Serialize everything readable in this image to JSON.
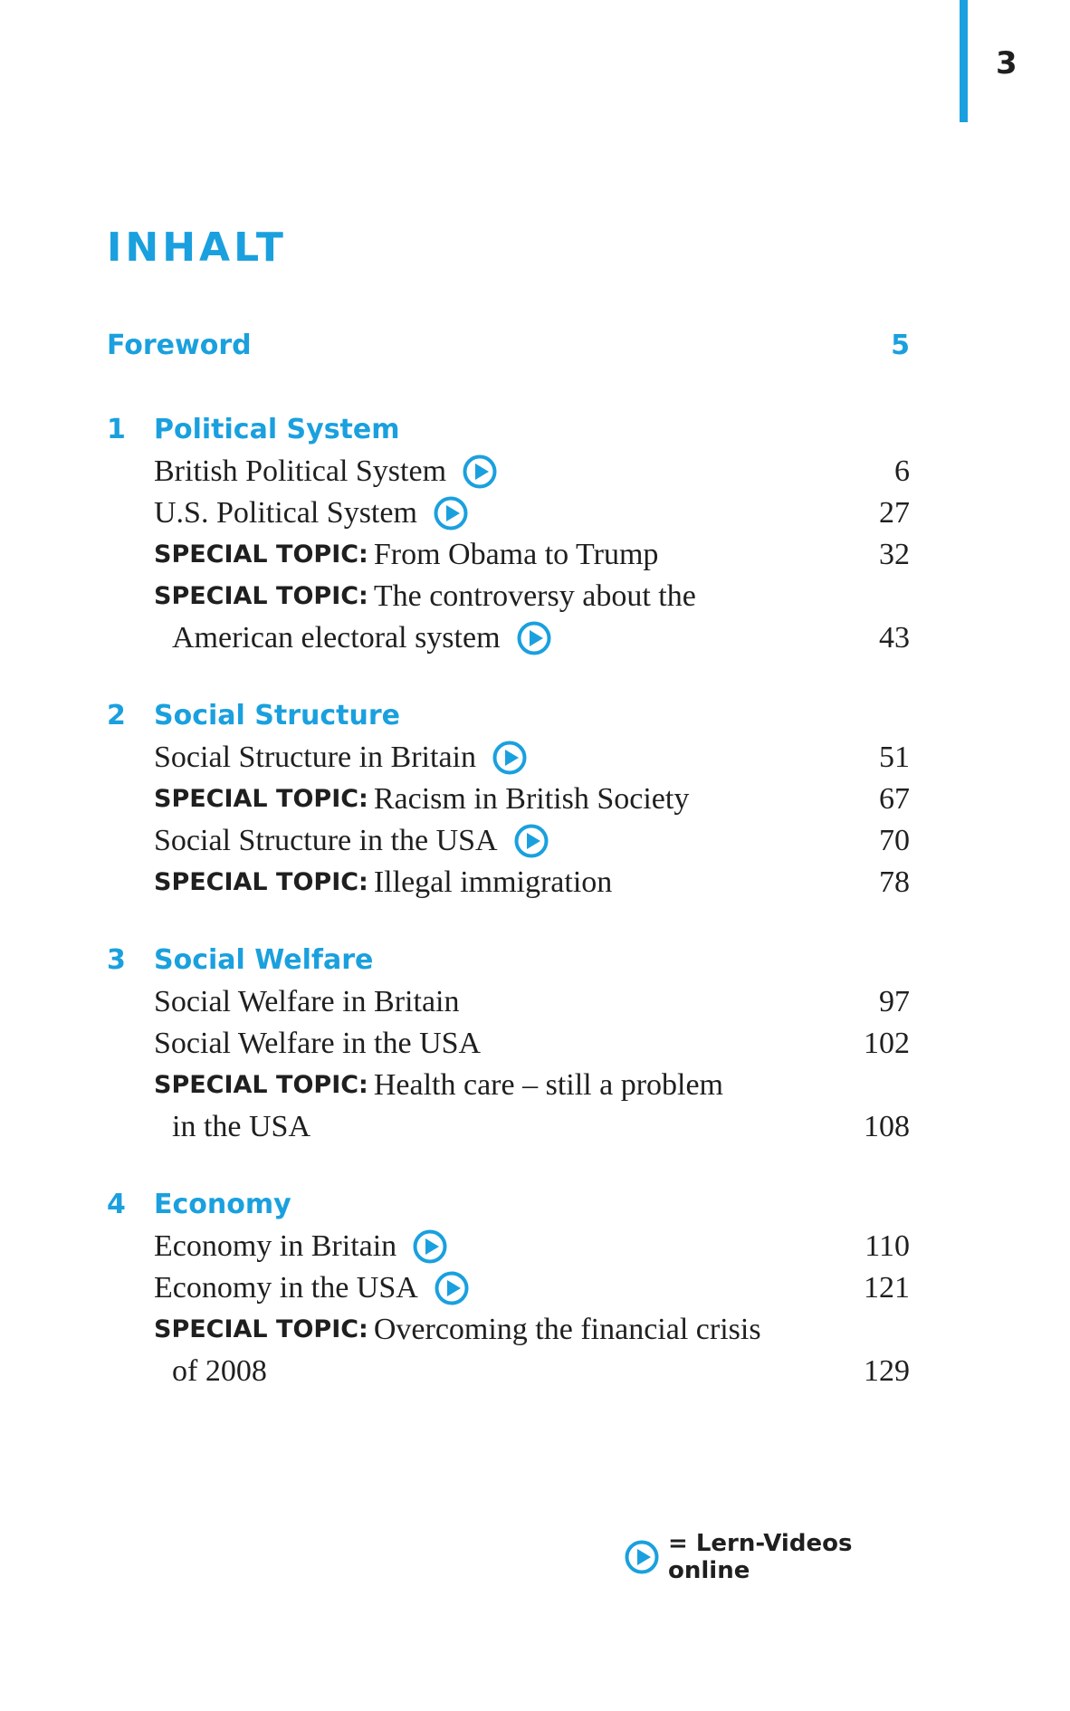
{
  "page_number": "3",
  "title": "INHALT",
  "foreword": {
    "label": "Foreword",
    "page": "5"
  },
  "chapters": [
    {
      "num": "1",
      "title": "Political System",
      "entries": [
        {
          "label": "",
          "text": "British Political System",
          "cont": "",
          "page": "6",
          "video": true
        },
        {
          "label": "",
          "text": "U.S. Political System",
          "cont": "",
          "page": "27",
          "video": true
        },
        {
          "label": "SPECIAL TOPIC:",
          "text": "From Obama to Trump",
          "cont": "",
          "page": "32",
          "video": false
        },
        {
          "label": "SPECIAL TOPIC:",
          "text": "The controversy about the",
          "cont": "American electoral system",
          "page": "43",
          "video": true
        }
      ]
    },
    {
      "num": "2",
      "title": "Social Structure",
      "entries": [
        {
          "label": "",
          "text": "Social Structure in Britain",
          "cont": "",
          "page": "51",
          "video": true
        },
        {
          "label": "SPECIAL TOPIC:",
          "text": "Racism in British Society",
          "cont": "",
          "page": "67",
          "video": false
        },
        {
          "label": "",
          "text": "Social Structure in the USA",
          "cont": "",
          "page": "70",
          "video": true
        },
        {
          "label": "SPECIAL TOPIC:",
          "text": "Illegal immigration",
          "cont": "",
          "page": "78",
          "video": false
        }
      ]
    },
    {
      "num": "3",
      "title": "Social Welfare",
      "entries": [
        {
          "label": "",
          "text": "Social Welfare in Britain",
          "cont": "",
          "page": "97",
          "video": false
        },
        {
          "label": "",
          "text": "Social Welfare in the USA",
          "cont": "",
          "page": "102",
          "video": false
        },
        {
          "label": "SPECIAL TOPIC:",
          "text": "Health care – still a problem",
          "cont": "in the USA",
          "page": "108",
          "video": false
        }
      ]
    },
    {
      "num": "4",
      "title": "Economy",
      "entries": [
        {
          "label": "",
          "text": "Economy in Britain",
          "cont": "",
          "page": "110",
          "video": true
        },
        {
          "label": "",
          "text": "Economy in the USA",
          "cont": "",
          "page": "121",
          "video": true
        },
        {
          "label": "SPECIAL TOPIC:",
          "text": "Overcoming the financial crisis",
          "cont": "of 2008",
          "page": "129",
          "video": false
        }
      ]
    }
  ],
  "legend": {
    "text": "= Lern-Videos online"
  },
  "colors": {
    "accent": "#1aa0de",
    "text": "#1f1f1f"
  },
  "icons": {
    "video": "play-circle-icon"
  }
}
